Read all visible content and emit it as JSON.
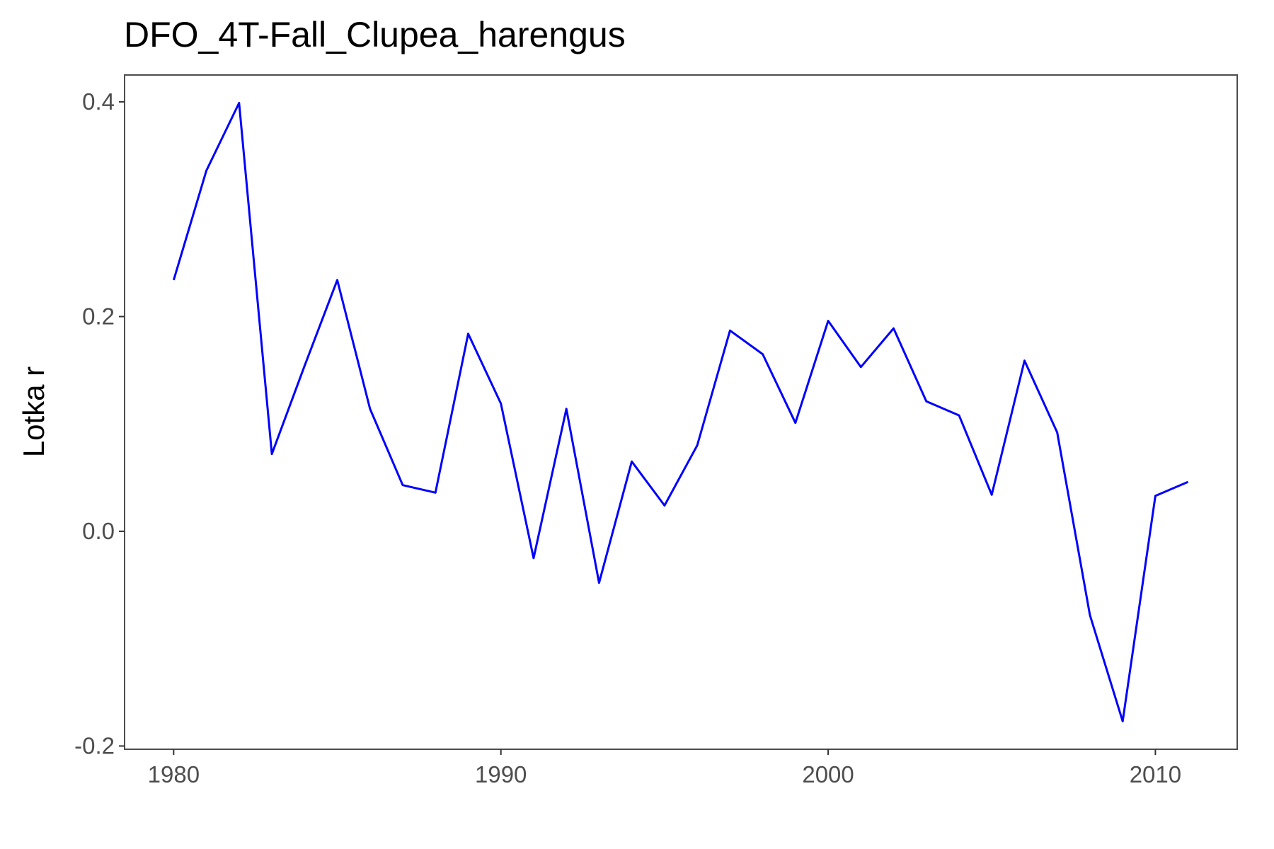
{
  "chart_data": {
    "type": "line",
    "title": "DFO_4T-Fall_Clupea_harengus",
    "xlabel": "",
    "ylabel": "Lotka r",
    "xlim": [
      1978.5,
      2012.5
    ],
    "ylim": [
      -0.203,
      0.425
    ],
    "x_ticks": [
      1980,
      1990,
      2000,
      2010
    ],
    "x_tick_labels": [
      "1980",
      "1990",
      "2000",
      "2010"
    ],
    "y_ticks": [
      -0.2,
      0.0,
      0.2,
      0.4
    ],
    "y_tick_labels": [
      "-0.2",
      "0.0",
      "0.2",
      "0.4"
    ],
    "grid": false,
    "legend": "none",
    "series": [
      {
        "color": "#0000ff",
        "x": [
          1980,
          1981,
          1982,
          1983,
          1984,
          1985,
          1986,
          1987,
          1988,
          1989,
          1990,
          1991,
          1992,
          1993,
          1994,
          1995,
          1996,
          1997,
          1998,
          1999,
          2000,
          2001,
          2002,
          2003,
          2004,
          2005,
          2006,
          2007,
          2008,
          2009,
          2010,
          2011
        ],
        "y": [
          0.234,
          0.336,
          0.399,
          0.072,
          0.154,
          0.234,
          0.114,
          0.043,
          0.036,
          0.184,
          0.119,
          -0.025,
          0.114,
          -0.048,
          0.065,
          0.024,
          0.08,
          0.187,
          0.165,
          0.101,
          0.196,
          0.153,
          0.189,
          0.121,
          0.108,
          0.034,
          0.159,
          0.092,
          -0.078,
          -0.177,
          0.033,
          0.046
        ]
      }
    ]
  }
}
